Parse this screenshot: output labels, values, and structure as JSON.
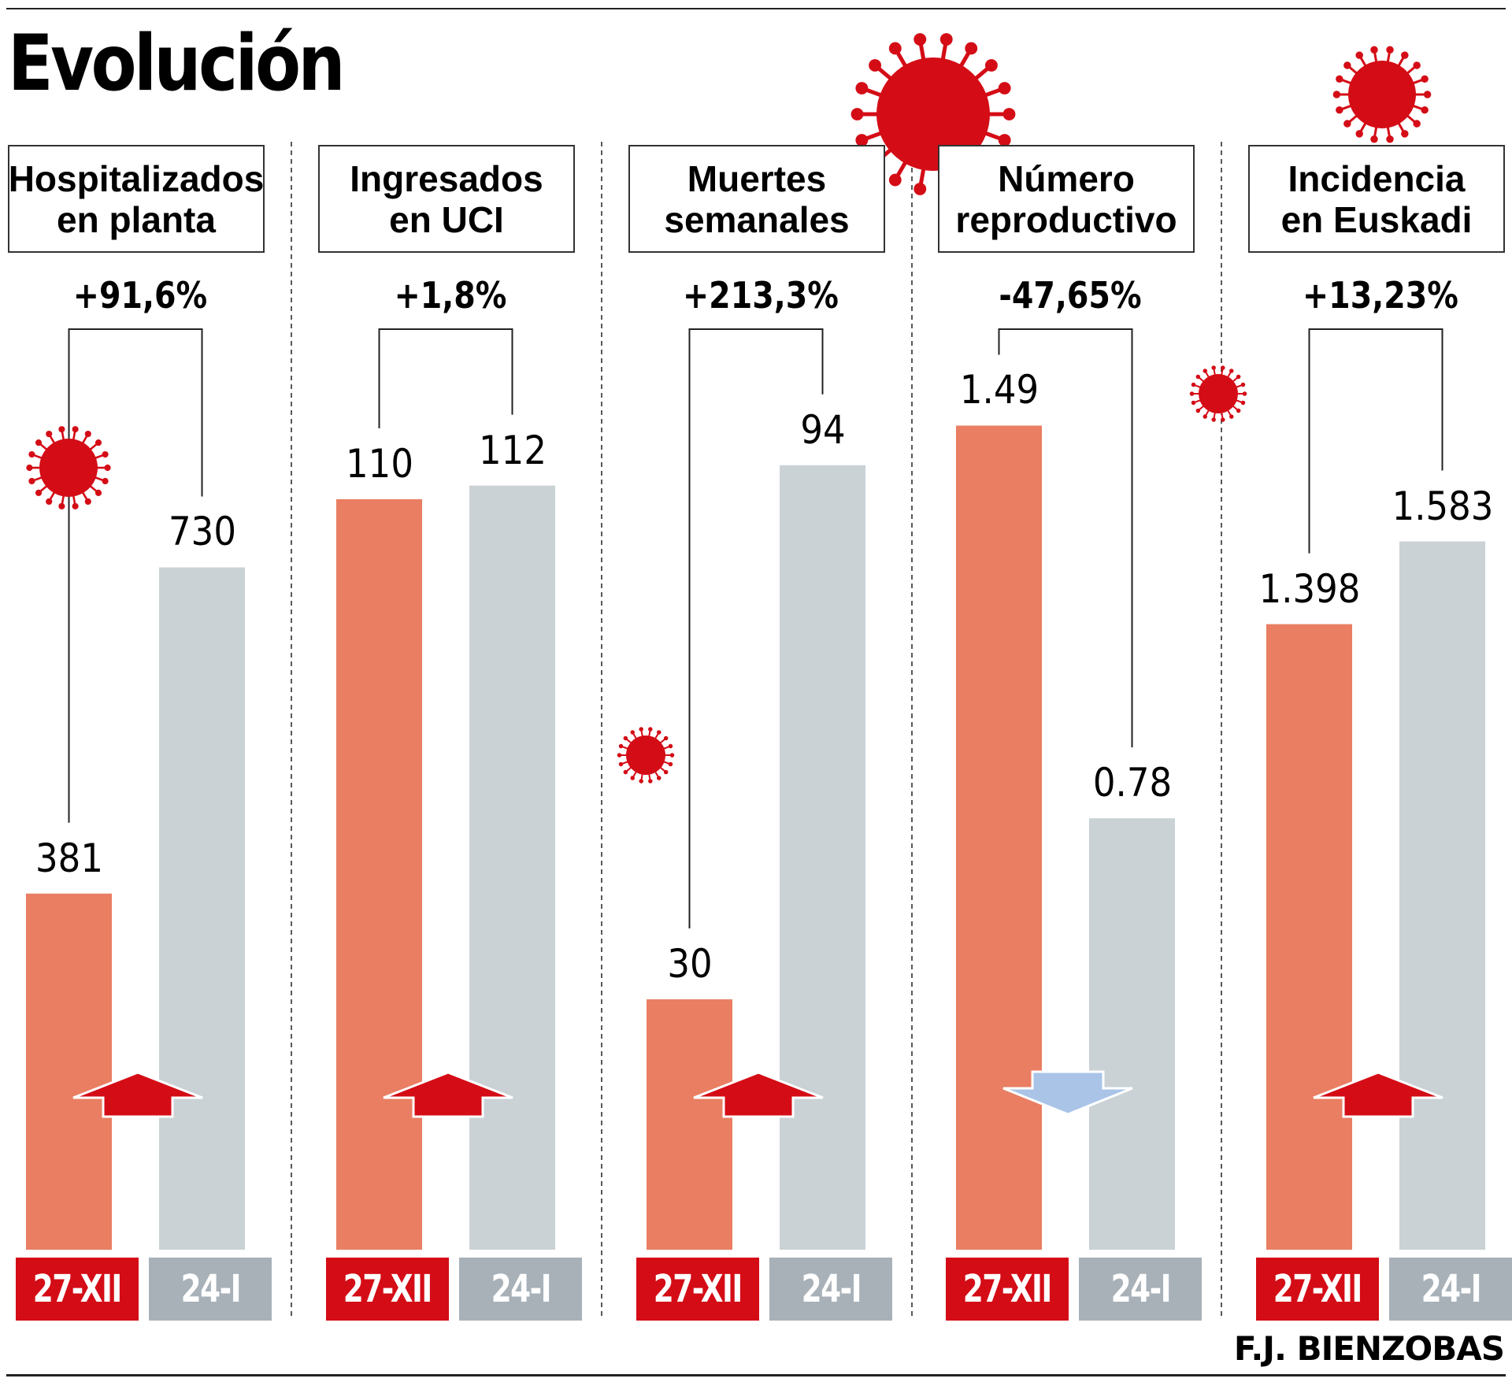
{
  "title": "Evolución",
  "credit": "F.J. BIENZOBAS",
  "colors": {
    "bar_before": "#e97e62",
    "bar_after": "#cad2d6",
    "tag_before": "#d40c16",
    "tag_after": "#a8b1b8",
    "arrow_up": "#d40c16",
    "arrow_down": "#aac4e8",
    "virus": "#d40c16"
  },
  "chart_data": {
    "type": "bar",
    "title": "Evolución",
    "categories": [
      "27-XII",
      "24-I"
    ],
    "legend": [
      "27-XII",
      "24-I"
    ],
    "grid": false,
    "panels": [
      {
        "title": "Hospitalizados\nen planta",
        "change_label": "+91,6%",
        "direction": "up",
        "values": [
          381,
          730
        ],
        "value_labels": [
          "381",
          "730"
        ],
        "ylim": [
          0,
          1000
        ]
      },
      {
        "title": "Ingresados\nen UCI",
        "change_label": "+1,8%",
        "direction": "up",
        "values": [
          110,
          112
        ],
        "value_labels": [
          "110",
          "112"
        ],
        "ylim": [
          0,
          137
        ]
      },
      {
        "title": "Muertes\nsemanales",
        "change_label": "+213,3%",
        "direction": "up",
        "values": [
          30,
          94
        ],
        "value_labels": [
          "30",
          "94"
        ],
        "ylim": [
          0,
          112
        ]
      },
      {
        "title": "Número\nreproductivo",
        "change_label": "-47,65%",
        "direction": "down",
        "values": [
          1.49,
          0.78
        ],
        "value_labels": [
          "1.49",
          "0.78"
        ],
        "ylim": [
          0,
          1.69
        ]
      },
      {
        "title": "Incidencia\nen Euskadi",
        "change_label": "+13,23%",
        "direction": "up",
        "values": [
          1398,
          1583
        ],
        "value_labels": [
          "1.398",
          "1.583"
        ],
        "ylim": [
          0,
          2089
        ]
      }
    ]
  }
}
